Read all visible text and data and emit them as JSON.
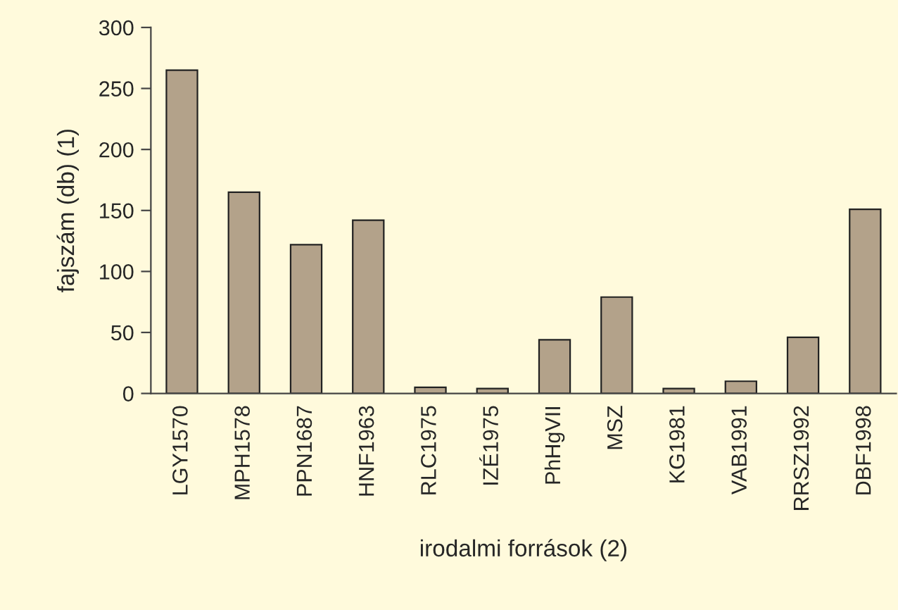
{
  "chart_data": {
    "type": "bar",
    "xlabel": "irodalmi források (2)",
    "ylabel": "fajszám (db) (1)",
    "categories": [
      "LGY1570",
      "MPH1578",
      "PPN1687",
      "HNF1963",
      "RLC1975",
      "IZÉ1975",
      "PhHgVII",
      "MSZ",
      "KG1981",
      "VAB1991",
      "RRSZ1992",
      "DBF1998"
    ],
    "values": [
      265,
      165,
      122,
      142,
      5,
      4,
      44,
      79,
      4,
      10,
      46,
      151
    ],
    "color": "#b3a28a",
    "ylim": [
      0,
      300
    ],
    "yticks": [
      0,
      50,
      100,
      150,
      200,
      250,
      300
    ],
    "grid": false,
    "legend": false
  }
}
